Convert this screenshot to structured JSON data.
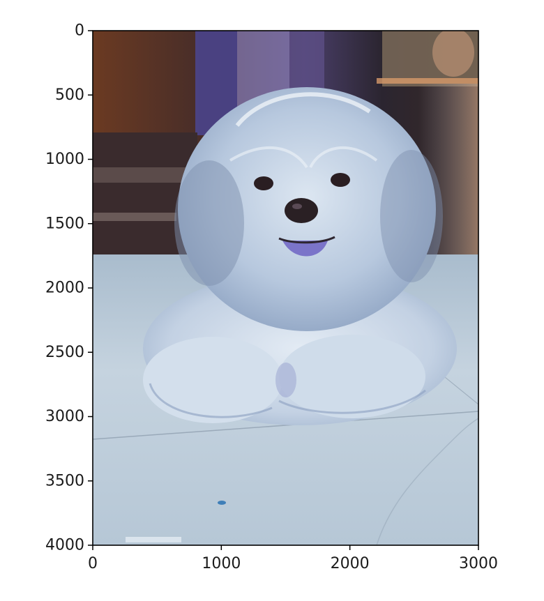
{
  "chart_data": {
    "type": "image",
    "title": "",
    "xlabel": "",
    "ylabel": "",
    "xlim": [
      0,
      3000
    ],
    "ylim": [
      4000,
      0
    ],
    "x_ticks": [
      0,
      1000,
      2000,
      3000
    ],
    "y_ticks": [
      0,
      500,
      1000,
      1500,
      2000,
      2500,
      3000,
      3500,
      4000
    ],
    "x_tick_labels": [
      "0",
      "1000",
      "2000",
      "3000"
    ],
    "y_tick_labels": [
      "0",
      "500",
      "1000",
      "1500",
      "2000",
      "2500",
      "3000",
      "3500",
      "4000"
    ],
    "grid": false,
    "y_axis_inverted": true,
    "image_content": "dog-photo",
    "colors": {
      "fur": "#b9c9df",
      "floor": "#c7d4df",
      "background_warm": "#6b3a22",
      "background_dark": "#2c2630"
    }
  }
}
